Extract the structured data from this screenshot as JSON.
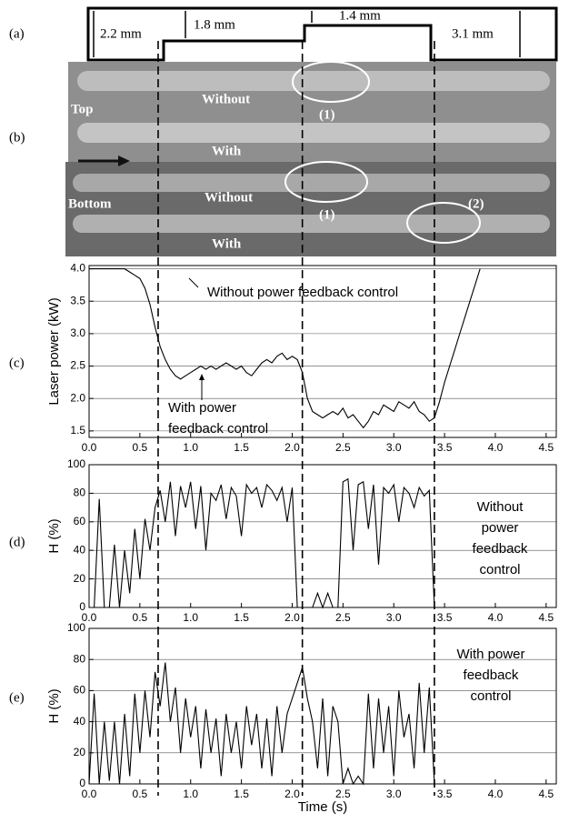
{
  "panel_labels": [
    "(a)",
    "(b)",
    "(c)",
    "(d)",
    "(e)"
  ],
  "thickness_profile": {
    "labels": [
      "2.2 mm",
      "1.8 mm",
      "1.4 mm",
      "3.1 mm"
    ]
  },
  "photo": {
    "labels": [
      "Top",
      "Without",
      "(1)",
      "With",
      "Bottom",
      "Without",
      "(1)",
      "(2)",
      "With"
    ]
  },
  "guides_x": [
    0.68,
    2.1,
    3.4
  ],
  "chart_data": [
    {
      "type": "line",
      "ylabel": "Laser power (kW)",
      "annotations": [
        "Without power feedback control",
        "With power",
        "feedback control"
      ],
      "xlim": [
        0,
        4.6
      ],
      "ylim": [
        1.4,
        4.05
      ],
      "xticks": [
        {
          "value": 0,
          "label": "0.0"
        },
        0.5,
        {
          "value": 1,
          "label": "1.0"
        },
        1.5,
        {
          "value": 2,
          "label": "2.0"
        },
        2.5,
        {
          "value": 3,
          "label": "3.0"
        },
        3.5,
        {
          "value": 4,
          "label": "4.0"
        },
        4.5
      ],
      "yticks": [
        1.5,
        {
          "value": 2,
          "label": "2.0"
        },
        2.5,
        {
          "value": 3,
          "label": "3.0"
        },
        3.5,
        {
          "value": 4,
          "label": "4.0"
        }
      ],
      "grid": true,
      "color": "#000000",
      "x": [
        0,
        0.05,
        0.1,
        0.15,
        0.2,
        0.25,
        0.3,
        0.35,
        0.4,
        0.45,
        0.5,
        0.55,
        0.6,
        0.65,
        0.7,
        0.75,
        0.8,
        0.85,
        0.9,
        0.95,
        1.0,
        1.05,
        1.1,
        1.15,
        1.2,
        1.25,
        1.3,
        1.35,
        1.4,
        1.45,
        1.5,
        1.55,
        1.6,
        1.65,
        1.7,
        1.75,
        1.8,
        1.85,
        1.9,
        1.95,
        2.0,
        2.05,
        2.1,
        2.15,
        2.2,
        2.25,
        2.3,
        2.35,
        2.4,
        2.45,
        2.5,
        2.55,
        2.6,
        2.65,
        2.7,
        2.75,
        2.8,
        2.85,
        2.9,
        2.95,
        3.0,
        3.05,
        3.1,
        3.15,
        3.2,
        3.25,
        3.3,
        3.35,
        3.4,
        3.45,
        3.5,
        3.55,
        3.6,
        3.65,
        3.7,
        3.75,
        3.8,
        3.85
      ],
      "values": [
        4.0,
        4.0,
        4.0,
        4.0,
        4.0,
        4.0,
        4.0,
        4.0,
        3.95,
        3.9,
        3.85,
        3.7,
        3.45,
        3.1,
        2.8,
        2.6,
        2.45,
        2.35,
        2.3,
        2.35,
        2.4,
        2.45,
        2.5,
        2.45,
        2.5,
        2.45,
        2.5,
        2.55,
        2.5,
        2.45,
        2.5,
        2.4,
        2.35,
        2.45,
        2.55,
        2.6,
        2.55,
        2.65,
        2.7,
        2.6,
        2.65,
        2.6,
        2.4,
        2.0,
        1.8,
        1.75,
        1.7,
        1.75,
        1.8,
        1.75,
        1.85,
        1.7,
        1.75,
        1.65,
        1.55,
        1.65,
        1.8,
        1.75,
        1.9,
        1.85,
        1.8,
        1.95,
        1.9,
        1.85,
        1.95,
        1.8,
        1.75,
        1.65,
        1.7,
        1.95,
        2.25,
        2.5,
        2.75,
        3.0,
        3.25,
        3.5,
        3.75,
        4.0
      ]
    },
    {
      "type": "line",
      "ylabel": "H (%)",
      "annotations": [
        "Without",
        "power",
        "feedback",
        "control"
      ],
      "xlim": [
        0,
        4.6
      ],
      "ylim": [
        0,
        100
      ],
      "xticks": [
        {
          "value": 0,
          "label": "0.0"
        },
        0.5,
        {
          "value": 1,
          "label": "1.0"
        },
        1.5,
        {
          "value": 2,
          "label": "2.0"
        },
        2.5,
        {
          "value": 3,
          "label": "3.0"
        },
        3.5,
        {
          "value": 4,
          "label": "4.0"
        },
        4.5
      ],
      "yticks": [
        0,
        20,
        40,
        60,
        80,
        100
      ],
      "grid": true,
      "color": "#000000",
      "x": [
        0,
        0.05,
        0.1,
        0.15,
        0.2,
        0.25,
        0.3,
        0.35,
        0.4,
        0.45,
        0.5,
        0.55,
        0.6,
        0.65,
        0.7,
        0.75,
        0.8,
        0.85,
        0.9,
        0.95,
        1.0,
        1.05,
        1.1,
        1.15,
        1.2,
        1.25,
        1.3,
        1.35,
        1.4,
        1.45,
        1.5,
        1.55,
        1.6,
        1.65,
        1.7,
        1.75,
        1.8,
        1.85,
        1.9,
        1.95,
        2.0,
        2.05,
        2.1,
        2.15,
        2.2,
        2.25,
        2.3,
        2.35,
        2.4,
        2.45,
        2.5,
        2.55,
        2.6,
        2.65,
        2.7,
        2.75,
        2.8,
        2.85,
        2.9,
        2.95,
        3.0,
        3.05,
        3.1,
        3.15,
        3.2,
        3.25,
        3.3,
        3.35,
        3.4
      ],
      "values": [
        0,
        0,
        76,
        0,
        0,
        44,
        0,
        40,
        10,
        55,
        20,
        62,
        40,
        70,
        82,
        60,
        88,
        50,
        85,
        70,
        88,
        55,
        85,
        40,
        80,
        75,
        86,
        62,
        84,
        78,
        50,
        86,
        80,
        84,
        70,
        86,
        82,
        75,
        84,
        60,
        84,
        0,
        0,
        0,
        0,
        10,
        0,
        10,
        0,
        0,
        88,
        90,
        40,
        86,
        88,
        55,
        86,
        30,
        84,
        80,
        86,
        60,
        84,
        80,
        70,
        84,
        78,
        82,
        0
      ]
    },
    {
      "type": "line",
      "ylabel": "H (%)",
      "xlabel": "Time (s)",
      "annotations": [
        "With power",
        "feedback",
        "control"
      ],
      "xlim": [
        0,
        4.6
      ],
      "ylim": [
        0,
        100
      ],
      "xticks": [
        {
          "value": 0,
          "label": "0.0"
        },
        0.5,
        {
          "value": 1,
          "label": "1.0"
        },
        1.5,
        {
          "value": 2,
          "label": "2.0"
        },
        2.5,
        {
          "value": 3,
          "label": "3.0"
        },
        3.5,
        {
          "value": 4,
          "label": "4.0"
        },
        4.5
      ],
      "yticks": [
        0,
        20,
        40,
        60,
        80,
        100
      ],
      "grid": true,
      "color": "#000000",
      "x": [
        0,
        0.05,
        0.1,
        0.15,
        0.2,
        0.25,
        0.3,
        0.35,
        0.4,
        0.45,
        0.5,
        0.55,
        0.6,
        0.65,
        0.7,
        0.75,
        0.8,
        0.85,
        0.9,
        0.95,
        1.0,
        1.05,
        1.1,
        1.15,
        1.2,
        1.25,
        1.3,
        1.35,
        1.4,
        1.45,
        1.5,
        1.55,
        1.6,
        1.65,
        1.7,
        1.75,
        1.8,
        1.85,
        1.9,
        1.95,
        2.0,
        2.05,
        2.1,
        2.15,
        2.2,
        2.25,
        2.3,
        2.35,
        2.4,
        2.45,
        2.5,
        2.55,
        2.6,
        2.65,
        2.7,
        2.75,
        2.8,
        2.85,
        2.9,
        2.95,
        3.0,
        3.05,
        3.1,
        3.15,
        3.2,
        3.25,
        3.3,
        3.35,
        3.4
      ],
      "values": [
        0,
        58,
        0,
        40,
        2,
        40,
        0,
        45,
        5,
        58,
        20,
        60,
        30,
        72,
        50,
        78,
        40,
        62,
        20,
        55,
        30,
        50,
        10,
        48,
        20,
        42,
        5,
        45,
        20,
        40,
        10,
        50,
        25,
        45,
        10,
        42,
        5,
        50,
        20,
        45,
        55,
        65,
        75,
        55,
        40,
        10,
        55,
        5,
        50,
        40,
        0,
        10,
        0,
        5,
        0,
        58,
        10,
        55,
        20,
        50,
        5,
        60,
        30,
        45,
        10,
        65,
        20,
        62,
        0
      ]
    }
  ]
}
